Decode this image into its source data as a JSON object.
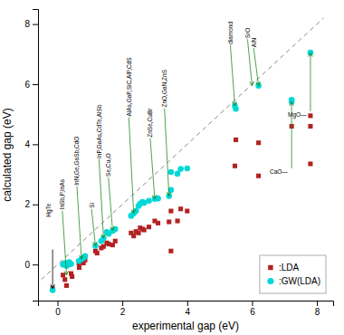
{
  "chart_data": {
    "type": "scatter",
    "xlabel": "experimental gap (eV)",
    "ylabel": "calculated gap (eV)",
    "xlim": [
      -0.6,
      8.5
    ],
    "ylim": [
      -1.2,
      8.5
    ],
    "xticks": [
      0,
      2,
      4,
      6,
      8
    ],
    "yticks": [
      0,
      2,
      4,
      6,
      8
    ],
    "legend": "lower right",
    "series": [
      {
        "name": ":LDA",
        "color": "#b22222",
        "marker": "square",
        "x": [
          -0.15,
          0.17,
          0.23,
          0.28,
          0.36,
          0.42,
          0.45,
          0.66,
          0.67,
          0.74,
          0.8,
          0.85,
          1.17,
          1.22,
          1.35,
          1.42,
          1.52,
          1.58,
          1.7,
          1.78,
          2.27,
          2.35,
          2.42,
          2.5,
          2.55,
          2.62,
          2.67,
          2.82,
          3.0,
          3.1,
          3.44,
          3.5,
          3.7,
          3.8,
          3.5,
          4.0,
          5.47,
          5.5,
          6.2,
          6.2,
          7.22,
          7.8,
          7.8,
          7.8
        ],
        "values": [
          -0.8,
          -0.35,
          -0.5,
          -0.7,
          0.0,
          -0.3,
          -0.4,
          0.05,
          -0.1,
          0.1,
          0.05,
          0.15,
          0.45,
          0.38,
          0.55,
          0.6,
          0.72,
          0.68,
          0.65,
          0.78,
          1.05,
          0.95,
          1.1,
          1.05,
          1.22,
          1.18,
          1.15,
          1.25,
          1.45,
          1.38,
          1.42,
          1.78,
          1.45,
          1.85,
          0.45,
          1.78,
          3.28,
          4.15,
          2.95,
          4.05,
          4.6,
          4.6,
          4.95,
          3.35
        ]
      },
      {
        "name": ":GW(LDA)",
        "color": "#00d8d8",
        "marker": "circle",
        "x": [
          -0.15,
          0.17,
          0.23,
          0.28,
          0.36,
          0.42,
          0.66,
          0.74,
          0.8,
          0.85,
          1.17,
          1.35,
          1.42,
          1.52,
          1.58,
          1.7,
          1.78,
          2.27,
          2.35,
          2.42,
          2.5,
          2.55,
          2.62,
          2.67,
          2.82,
          3.0,
          3.1,
          3.44,
          3.5,
          3.7,
          3.8,
          3.5,
          4.0,
          5.47,
          5.5,
          6.2,
          7.22,
          7.22,
          7.8
        ],
        "values": [
          -0.85,
          0.0,
          0.05,
          -0.05,
          0.08,
          0.02,
          0.12,
          0.18,
          0.22,
          0.28,
          0.62,
          0.78,
          0.88,
          1.08,
          1.02,
          1.12,
          1.18,
          1.62,
          1.7,
          1.78,
          1.95,
          2.02,
          2.08,
          2.05,
          2.12,
          2.18,
          2.2,
          2.28,
          3.08,
          3.02,
          3.18,
          2.48,
          3.2,
          5.28,
          5.18,
          5.95,
          5.42,
          5.48,
          7.05
        ]
      }
    ],
    "reference_lines": [
      {
        "x": [
          -0.5,
          8.2
        ],
        "y": [
          -0.5,
          8.2
        ],
        "color": "#888888",
        "line_style": "dashed"
      }
    ],
    "annotations": [
      {
        "text": "HgTe",
        "text_at": [
          -0.28,
          1.55
        ],
        "arrow_from": [
          -0.15,
          0.5
        ],
        "arrow_to": [
          -0.15,
          -0.8
        ],
        "color": "#000000",
        "direction": "vertical"
      },
      {
        "text": "InSb,P,InAs",
        "text_at": [
          0.15,
          1.8
        ],
        "arrow_from": [
          0.15,
          1.8
        ],
        "arrow_to": [
          0.28,
          -0.35
        ],
        "color": "#228B22",
        "direction": "vertical"
      },
      {
        "text": "InN,Ge,GaSb,CdO",
        "text_at": [
          0.6,
          2.6
        ],
        "arrow_from": [
          0.6,
          2.6
        ],
        "arrow_to": [
          0.74,
          0.18
        ],
        "color": "#228B22",
        "direction": "vertical"
      },
      {
        "text": "Si",
        "text_at": [
          1.05,
          1.85
        ],
        "arrow_from": [
          1.05,
          1.85
        ],
        "arrow_to": [
          1.17,
          0.62
        ],
        "color": "#228B22",
        "direction": "vertical"
      },
      {
        "text": "InP,GaAs,CdTe,AlSb",
        "text_at": [
          1.28,
          3.5
        ],
        "arrow_from": [
          1.28,
          3.5
        ],
        "arrow_to": [
          1.42,
          0.88
        ],
        "color": "#228B22",
        "direction": "vertical"
      },
      {
        "text": "Se,Cu₂O",
        "text_at": [
          1.57,
          2.9
        ],
        "arrow_from": [
          1.57,
          2.9
        ],
        "arrow_to": [
          1.7,
          1.12
        ],
        "color": "#228B22",
        "direction": "vertical"
      },
      {
        "text": "AlAs,GaP,SiC,AlP,CdS",
        "text_at": [
          2.2,
          4.9
        ],
        "arrow_from": [
          2.2,
          4.9
        ],
        "arrow_to": [
          2.35,
          1.7
        ],
        "color": "#228B22",
        "direction": "vertical"
      },
      {
        "text": "ZnSe,CuBr",
        "text_at": [
          2.86,
          4.2
        ],
        "arrow_from": [
          2.86,
          4.2
        ],
        "arrow_to": [
          3.0,
          2.18
        ],
        "color": "#228B22",
        "direction": "vertical"
      },
      {
        "text": "ZnO,GaN,ZnS",
        "text_at": [
          3.3,
          5.2
        ],
        "arrow_from": [
          3.3,
          5.2
        ],
        "arrow_to": [
          3.44,
          2.28
        ],
        "color": "#228B22",
        "direction": "vertical"
      },
      {
        "text": "diamond",
        "text_at": [
          5.33,
          7.3
        ],
        "arrow_from": [
          5.33,
          7.3
        ],
        "arrow_to": [
          5.47,
          5.28
        ],
        "color": "#228B22",
        "direction": "vertical"
      },
      {
        "text": "SrO",
        "text_at": [
          5.86,
          7.5
        ],
        "arrow_from": [
          5.86,
          7.5
        ],
        "arrow_to": [
          6.0,
          5.95
        ],
        "color": "#228B22",
        "direction": "vertical"
      },
      {
        "text": "AlN",
        "text_at": [
          6.05,
          7.2
        ],
        "arrow_from": [
          6.05,
          7.2
        ],
        "arrow_to": [
          6.2,
          5.95
        ],
        "color": "#228B22",
        "direction": "vertical"
      },
      {
        "text": "CaO—",
        "text_at": [
          7.1,
          3.1
        ],
        "arrow_from": [
          7.22,
          3.2
        ],
        "arrow_to": [
          7.22,
          5.42
        ],
        "color": "#228B22",
        "direction": "horizontal"
      },
      {
        "text": "MgO—",
        "text_at": [
          7.68,
          5.0
        ],
        "arrow_from": [
          7.8,
          5.1
        ],
        "arrow_to": [
          7.8,
          7.05
        ],
        "color": "#228B22",
        "direction": "horizontal"
      }
    ]
  }
}
